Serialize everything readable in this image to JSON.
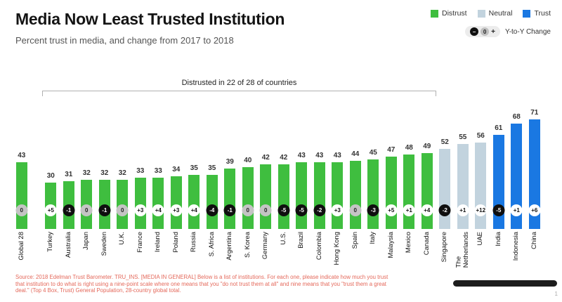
{
  "header": {
    "title": "Media Now Least Trusted Institution",
    "subtitle": "Percent trust in media, and change from 2017 to 2018",
    "legend": [
      {
        "key": "distrust",
        "label": "Distrust",
        "color": "#3fbe3f"
      },
      {
        "key": "neutral",
        "label": "Neutral",
        "color": "#c2d3de"
      },
      {
        "key": "trust",
        "label": "Trust",
        "color": "#1a78e2"
      }
    ],
    "yoy": {
      "minus": "–",
      "zero": "0",
      "plus": "+",
      "label": "Y-to-Y Change"
    }
  },
  "chart_data": {
    "type": "bar",
    "title": "Media Now Least Trusted Institution",
    "subtitle": "Percent trust in media, and change from 2017 to 2018",
    "annotation": "Distrusted in 22 of 28 of countries",
    "annotation_span": [
      1,
      22
    ],
    "ylim": [
      0,
      100
    ],
    "grid": false,
    "legend_position": "top-right",
    "legend_entries": [
      "Distrust",
      "Neutral",
      "Trust"
    ],
    "categories": [
      "Global 28",
      "Turkey",
      "Australia",
      "Japan",
      "Sweden",
      "U.K.",
      "France",
      "Ireland",
      "Poland",
      "Russia",
      "S. Africa",
      "Argentina",
      "S. Korea",
      "Germany",
      "U.S.",
      "Brazil",
      "Colombia",
      "Hong Kong",
      "Spain",
      "Italy",
      "Malaysia",
      "Mexico",
      "Canada",
      "Singapore",
      "The\nNetherlands",
      "UAE",
      "India",
      "Indonesia",
      "China"
    ],
    "values": [
      43,
      30,
      31,
      32,
      32,
      32,
      33,
      33,
      34,
      35,
      35,
      39,
      40,
      42,
      42,
      43,
      43,
      43,
      44,
      45,
      47,
      48,
      49,
      52,
      55,
      56,
      61,
      68,
      71
    ],
    "changes": [
      "0",
      "+5",
      "-1",
      "0",
      "-1",
      "0",
      "+3",
      "+4",
      "+3",
      "+4",
      "-4",
      "-1",
      "0",
      "0",
      "-5",
      "-5",
      "-2",
      "+3",
      "0",
      "-3",
      "+5",
      "+1",
      "+4",
      "-2",
      "+1",
      "+12",
      "-5",
      "+1",
      "+6"
    ],
    "groups": [
      "distrust",
      "distrust",
      "distrust",
      "distrust",
      "distrust",
      "distrust",
      "distrust",
      "distrust",
      "distrust",
      "distrust",
      "distrust",
      "distrust",
      "distrust",
      "distrust",
      "distrust",
      "distrust",
      "distrust",
      "distrust",
      "distrust",
      "distrust",
      "distrust",
      "distrust",
      "distrust",
      "neutral",
      "neutral",
      "neutral",
      "trust",
      "trust",
      "trust"
    ],
    "colors": {
      "distrust": "#3fbe3f",
      "neutral": "#c2d3de",
      "trust": "#1a78e2"
    },
    "change_colors": {
      "negative": "#0f0f0f",
      "zero": "#c4c4c4",
      "positive": "#ffffff"
    }
  },
  "footer": {
    "source_lines": [
      "Source: 2018 Edelman Trust Barometer. TRU_INS. [MEDIA IN GENERAL] Below is a list of institutions. For each one, please indicate how much you trust",
      "that institution to do what is right using a nine-point scale where one means that you \"do not trust them at all\" and nine means that you \"trust them a great",
      "deal.\" (Top 4 Box, Trust) General Population, 28-country global total."
    ],
    "page_number": "1"
  }
}
